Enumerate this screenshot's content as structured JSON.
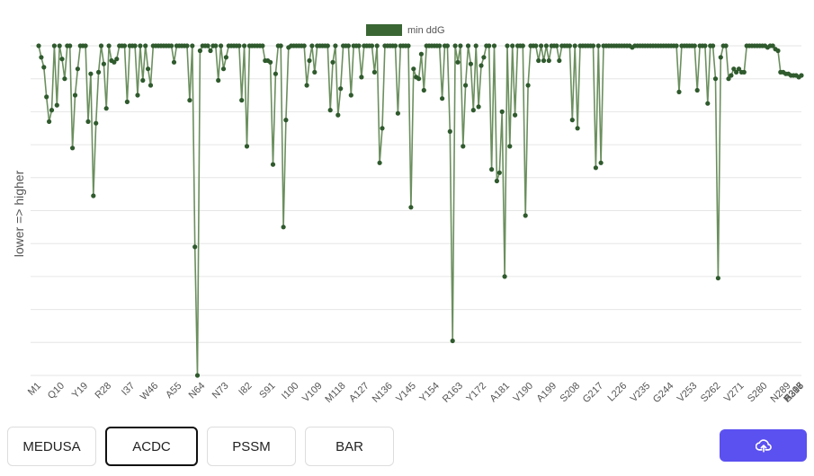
{
  "chart_data": {
    "type": "line",
    "legend": {
      "label": "min ddG",
      "position": "top"
    },
    "ylabel": "lower    =>    higher",
    "grid": true,
    "ylim": [
      -10,
      0
    ],
    "xtick_labels": [
      "M1",
      "Q10",
      "Y19",
      "R28",
      "I37",
      "W46",
      "A55",
      "N64",
      "N73",
      "I82",
      "S91",
      "I100",
      "V109",
      "M118",
      "A127",
      "N136",
      "V145",
      "Y154",
      "R163",
      "Y172",
      "A181",
      "V190",
      "A199",
      "S208",
      "G217",
      "L226",
      "V235",
      "G244",
      "V253",
      "S262",
      "V271",
      "S280",
      "N289",
      "A298",
      "S307",
      "H316"
    ],
    "series": [
      {
        "name": "min ddG",
        "values": [
          0,
          -0.35,
          -0.65,
          -1.55,
          -2.3,
          -1.95,
          0,
          -1.8,
          0,
          -0.4,
          -1.0,
          0,
          0,
          -3.1,
          -1.5,
          -0.7,
          0,
          0,
          0,
          -2.3,
          -0.85,
          -4.55,
          -2.35,
          -0.8,
          0,
          -0.55,
          -1.9,
          0,
          -0.45,
          -0.5,
          -0.4,
          0,
          0,
          0,
          -1.7,
          0,
          0,
          0,
          -1.5,
          0,
          -1.05,
          0,
          -0.7,
          -1.2,
          0,
          0,
          0,
          0,
          0,
          0,
          0,
          0,
          -0.5,
          0,
          0,
          0,
          0,
          0,
          -1.65,
          0,
          -6.1,
          -10,
          -0.15,
          0,
          0,
          0,
          -0.15,
          0,
          0,
          -1.05,
          0,
          -0.7,
          -0.35,
          0,
          0,
          0,
          0,
          0,
          -1.65,
          0,
          -3.05,
          0,
          0,
          0,
          0,
          0,
          0,
          -0.45,
          -0.45,
          -0.5,
          -3.6,
          -0.85,
          0,
          0,
          -5.5,
          -2.25,
          -0.05,
          0,
          0,
          0,
          0,
          0,
          0,
          -1.2,
          -0.45,
          0,
          -0.8,
          0,
          0,
          0,
          0,
          0,
          -1.95,
          -0.5,
          0,
          -2.1,
          -1.3,
          0,
          0,
          0,
          -1.5,
          0,
          0,
          0,
          -0.95,
          0,
          0,
          0,
          0,
          -0.8,
          0,
          -3.55,
          -2.5,
          0,
          0,
          0,
          0,
          0,
          -2.05,
          0,
          0,
          0,
          0,
          -4.9,
          -0.7,
          -0.95,
          -1.0,
          -0.25,
          -1.35,
          0,
          0,
          0,
          0,
          0,
          0,
          -1.6,
          0,
          0,
          -2.6,
          -8.95,
          0,
          -0.5,
          0,
          -3.05,
          -1.2,
          0,
          -0.55,
          -1.95,
          0,
          -1.85,
          -0.6,
          -0.35,
          0,
          0,
          -3.75,
          0,
          -4.1,
          -3.85,
          -2.0,
          -7.0,
          0,
          -3.05,
          0,
          -2.1,
          0,
          0,
          0,
          -5.15,
          -1.2,
          0,
          0,
          0,
          -0.45,
          0,
          -0.45,
          0,
          -0.45,
          0,
          0,
          0,
          -0.45,
          0,
          0,
          0,
          0,
          -2.25,
          0,
          -2.5,
          0,
          0,
          0,
          0,
          0,
          0,
          -3.7,
          0,
          -3.55,
          0,
          0,
          0,
          0,
          0,
          0,
          0,
          0,
          0,
          0,
          0,
          -0.05,
          0,
          0,
          0,
          0,
          0,
          0,
          0,
          0,
          0,
          0,
          0,
          0,
          0,
          0,
          0,
          0,
          0,
          -1.4,
          0,
          0,
          0,
          0,
          0,
          0,
          -1.35,
          0,
          0,
          0,
          -1.75,
          0,
          0,
          -1.0,
          -7.05,
          -0.35,
          0,
          0,
          -1.0,
          -0.9,
          -0.7,
          -0.8,
          -0.7,
          -0.8,
          -0.8,
          0,
          0,
          0,
          0,
          0,
          0,
          0,
          0,
          -0.05,
          0,
          0,
          -0.1,
          -0.15,
          -0.8,
          -0.8,
          -0.85,
          -0.85,
          -0.9,
          -0.9,
          -0.9,
          -0.95,
          -0.9
        ]
      }
    ]
  },
  "buttons": {
    "tabs": [
      "MEDUSA",
      "ACDC",
      "PSSM",
      "BAR"
    ],
    "active": "ACDC"
  },
  "colors": {
    "line": "#6b8f5e",
    "marker": "#2f5a2d",
    "legend": "#3a6634",
    "accent": "#5b50f0",
    "grid": "#e6e6e6"
  },
  "icons": {
    "download": "cloud-upload-icon"
  }
}
